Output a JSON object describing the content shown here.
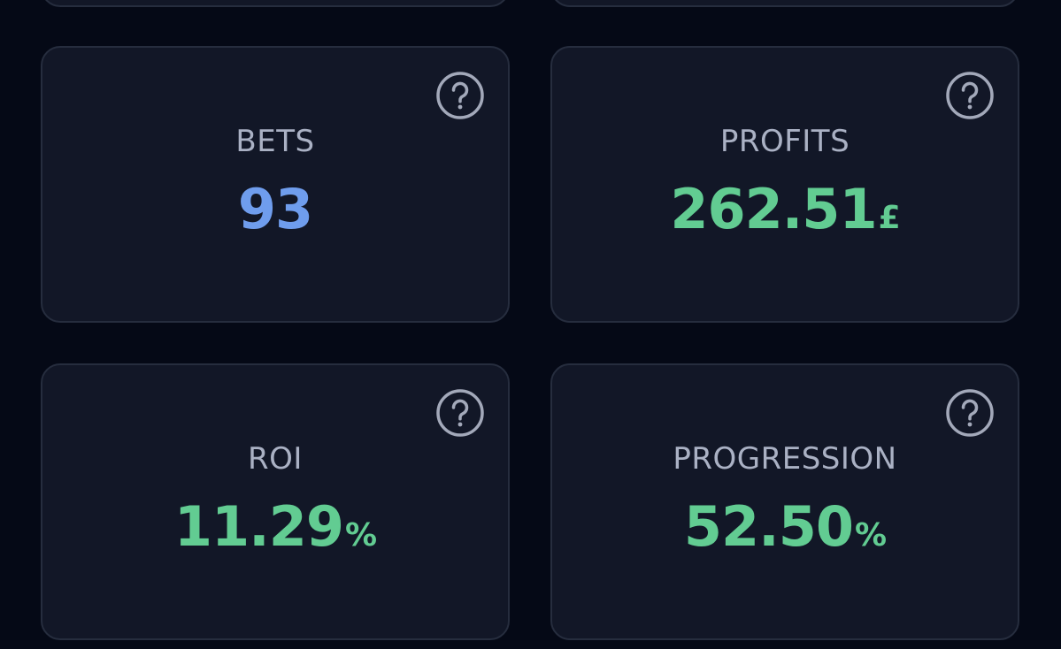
{
  "cards": [
    {
      "label": "BETS",
      "value": "93",
      "color": "#6f9ded"
    },
    {
      "label": "PROFITS",
      "value": "262.51",
      "unit": "£",
      "color": "#62cc92"
    },
    {
      "label": "ROI",
      "value": "11.29",
      "unit": "%",
      "color": "#62cc92"
    },
    {
      "label": "PROGRESSION",
      "value": "52.50",
      "unit": "%",
      "color": "#62cc92"
    }
  ]
}
